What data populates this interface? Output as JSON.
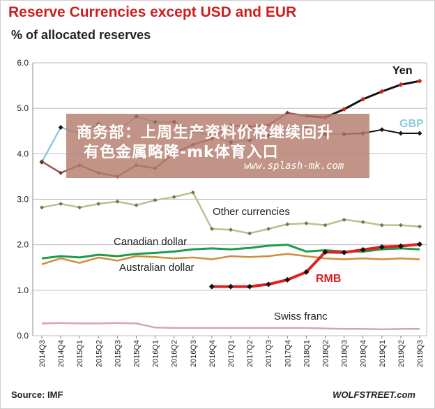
{
  "header": {
    "title": "Reserve Currencies except USD and EUR",
    "subtitle": "% of allocated reserves"
  },
  "footer": {
    "source": "Source: IMF",
    "brand": "WOLFSTREET.com"
  },
  "overlay": {
    "line1": "商务部：上周生产资料价格继续回升",
    "line2": "有色金属略降-mk体育入口",
    "url": "www.splash-mk.com"
  },
  "colors": {
    "Yen": "#a0524a",
    "Yen_recent": "#111111",
    "GBP": "#8ecbdc",
    "GBP_recent": "#111111",
    "Other currencies": "#b4c48c",
    "Canadian dollar": "#1f9b4a",
    "Australian dollar": "#d48a3a",
    "RMB": "#e02020",
    "Swiss franc": "#d8a4b0",
    "grid": "#bbbbbb"
  },
  "chart_data": {
    "type": "line",
    "categories": [
      "2014Q3",
      "2014Q4",
      "2015Q1",
      "2015Q2",
      "2015Q3",
      "2015Q4",
      "2016Q1",
      "2016Q2",
      "2016Q3",
      "2016Q4",
      "2017Q1",
      "2017Q2",
      "2017Q3",
      "2017Q4",
      "2018Q1",
      "2018Q2",
      "2018Q3",
      "2018Q4",
      "2019Q1",
      "2019Q2",
      "2019Q3"
    ],
    "ylim": [
      0,
      6
    ],
    "yticks": [
      "0.0",
      "1.0",
      "2.0",
      "3.0",
      "4.0",
      "5.0",
      "6.0"
    ],
    "grid": true,
    "series": [
      {
        "name": "Yen",
        "values": [
          3.83,
          3.58,
          3.75,
          3.58,
          3.5,
          3.75,
          3.68,
          4.02,
          4.2,
          4.33,
          4.62,
          4.6,
          4.63,
          4.9,
          4.83,
          4.8,
          4.98,
          5.2,
          5.37,
          5.52,
          5.6
        ]
      },
      {
        "name": "GBP",
        "values": [
          3.82,
          4.58,
          4.45,
          4.65,
          4.5,
          4.82,
          4.7,
          4.7,
          4.5,
          4.4,
          4.25,
          4.3,
          4.4,
          4.55,
          4.6,
          4.43,
          4.43,
          4.45,
          4.53,
          4.45,
          4.45
        ]
      },
      {
        "name": "Other currencies",
        "values": [
          2.82,
          2.9,
          2.82,
          2.9,
          2.95,
          2.87,
          2.98,
          3.05,
          3.15,
          2.35,
          2.33,
          2.25,
          2.35,
          2.45,
          2.47,
          2.43,
          2.55,
          2.5,
          2.43,
          2.43,
          2.4
        ]
      },
      {
        "name": "Canadian dollar",
        "values": [
          1.7,
          1.75,
          1.72,
          1.78,
          1.75,
          1.8,
          1.82,
          1.85,
          1.9,
          1.92,
          1.9,
          1.93,
          1.98,
          2.0,
          1.85,
          1.88,
          1.85,
          1.85,
          1.9,
          1.92,
          1.9
        ]
      },
      {
        "name": "Australian dollar",
        "values": [
          1.57,
          1.7,
          1.6,
          1.72,
          1.65,
          1.75,
          1.73,
          1.7,
          1.72,
          1.68,
          1.75,
          1.73,
          1.75,
          1.8,
          1.75,
          1.7,
          1.68,
          1.7,
          1.68,
          1.7,
          1.68
        ]
      },
      {
        "name": "RMB",
        "values": [
          null,
          null,
          null,
          null,
          null,
          null,
          null,
          null,
          null,
          1.08,
          1.08,
          1.08,
          1.13,
          1.23,
          1.4,
          1.84,
          1.83,
          1.89,
          1.95,
          1.97,
          2.01
        ]
      },
      {
        "name": "Swiss franc",
        "values": [
          0.27,
          0.28,
          0.27,
          0.27,
          0.28,
          0.27,
          0.18,
          0.17,
          0.17,
          0.17,
          0.17,
          0.17,
          0.17,
          0.17,
          0.17,
          0.16,
          0.15,
          0.15,
          0.14,
          0.15,
          0.15
        ]
      }
    ],
    "annotations": [
      {
        "text": "Yen",
        "color": "#111111"
      },
      {
        "text": "GBP",
        "color": "#8ecbdc"
      },
      {
        "text": "Other currencies",
        "color": "#222222"
      },
      {
        "text": "Canadian dollar",
        "color": "#222222"
      },
      {
        "text": "Australian dollar",
        "color": "#222222"
      },
      {
        "text": "RMB",
        "color": "#d42020"
      },
      {
        "text": "Swiss franc",
        "color": "#222222"
      }
    ]
  }
}
